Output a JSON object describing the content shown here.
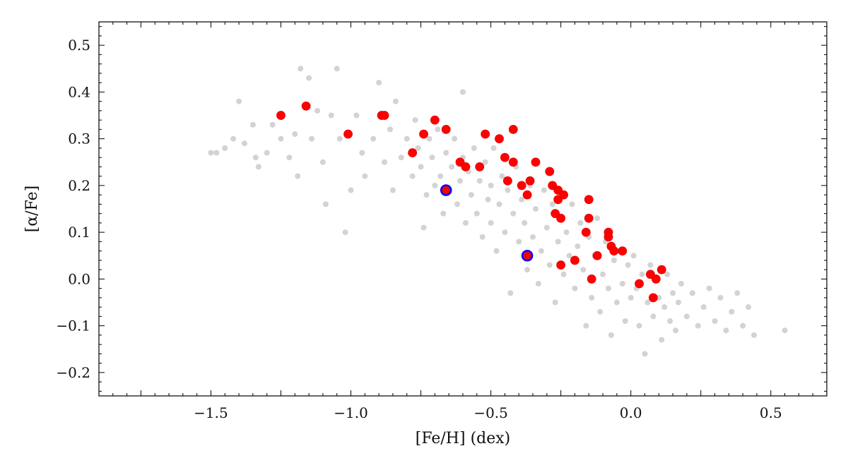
{
  "chart_data": {
    "type": "scatter",
    "title": "",
    "xlabel": "[Fe/H] (dex)",
    "ylabel": "[α/Fe]",
    "xlim": [
      -1.9,
      0.7
    ],
    "ylim": [
      -0.25,
      0.55
    ],
    "xticks": [
      -1.5,
      -1.0,
      -0.5,
      0.0,
      0.5
    ],
    "xtick_labels": [
      "−1.5",
      "−1.0",
      "−0.5",
      "0.0",
      "0.5"
    ],
    "yticks": [
      -0.2,
      -0.1,
      0.0,
      0.1,
      0.2,
      0.3,
      0.4,
      0.5
    ],
    "ytick_labels": [
      "−0.2",
      "−0.1",
      "0.0",
      "0.1",
      "0.2",
      "0.3",
      "0.4",
      "0.5"
    ],
    "grid": false,
    "legend": "none",
    "series": [
      {
        "color": "#d3d3d3",
        "points": [
          [
            -1.5,
            0.27
          ],
          [
            -1.48,
            0.27
          ],
          [
            -1.45,
            0.28
          ],
          [
            -1.42,
            0.3
          ],
          [
            -1.4,
            0.38
          ],
          [
            -1.38,
            0.29
          ],
          [
            -1.35,
            0.33
          ],
          [
            -1.34,
            0.26
          ],
          [
            -1.33,
            0.24
          ],
          [
            -1.3,
            0.27
          ],
          [
            -1.28,
            0.33
          ],
          [
            -1.25,
            0.3
          ],
          [
            -1.22,
            0.26
          ],
          [
            -1.2,
            0.31
          ],
          [
            -1.19,
            0.22
          ],
          [
            -1.18,
            0.45
          ],
          [
            -1.16,
            0.37
          ],
          [
            -1.15,
            0.43
          ],
          [
            -1.14,
            0.3
          ],
          [
            -1.12,
            0.36
          ],
          [
            -1.1,
            0.25
          ],
          [
            -1.09,
            0.16
          ],
          [
            -1.07,
            0.35
          ],
          [
            -1.05,
            0.45
          ],
          [
            -1.04,
            0.3
          ],
          [
            -1.02,
            0.1
          ],
          [
            -1.0,
            0.19
          ],
          [
            -0.98,
            0.35
          ],
          [
            -0.96,
            0.27
          ],
          [
            -0.95,
            0.22
          ],
          [
            -0.92,
            0.3
          ],
          [
            -0.9,
            0.42
          ],
          [
            -0.88,
            0.25
          ],
          [
            -0.86,
            0.32
          ],
          [
            -0.85,
            0.19
          ],
          [
            -0.84,
            0.38
          ],
          [
            -0.82,
            0.26
          ],
          [
            -0.8,
            0.3
          ],
          [
            -0.78,
            0.22
          ],
          [
            -0.77,
            0.34
          ],
          [
            -0.76,
            0.28
          ],
          [
            -0.75,
            0.24
          ],
          [
            -0.74,
            0.11
          ],
          [
            -0.73,
            0.18
          ],
          [
            -0.72,
            0.3
          ],
          [
            -0.71,
            0.26
          ],
          [
            -0.7,
            0.2
          ],
          [
            -0.69,
            0.32
          ],
          [
            -0.68,
            0.22
          ],
          [
            -0.67,
            0.14
          ],
          [
            -0.66,
            0.27
          ],
          [
            -0.65,
            0.19
          ],
          [
            -0.64,
            0.24
          ],
          [
            -0.63,
            0.3
          ],
          [
            -0.62,
            0.16
          ],
          [
            -0.61,
            0.21
          ],
          [
            -0.6,
            0.4
          ],
          [
            -0.6,
            0.26
          ],
          [
            -0.59,
            0.12
          ],
          [
            -0.58,
            0.23
          ],
          [
            -0.57,
            0.18
          ],
          [
            -0.56,
            0.28
          ],
          [
            -0.55,
            0.14
          ],
          [
            -0.54,
            0.21
          ],
          [
            -0.53,
            0.09
          ],
          [
            -0.52,
            0.25
          ],
          [
            -0.51,
            0.17
          ],
          [
            -0.5,
            0.2
          ],
          [
            -0.5,
            0.12
          ],
          [
            -0.49,
            0.28
          ],
          [
            -0.48,
            0.06
          ],
          [
            -0.47,
            0.16
          ],
          [
            -0.46,
            0.22
          ],
          [
            -0.45,
            0.1
          ],
          [
            -0.44,
            0.19
          ],
          [
            -0.43,
            -0.03
          ],
          [
            -0.42,
            0.14
          ],
          [
            -0.41,
            0.24
          ],
          [
            -0.4,
            0.08
          ],
          [
            -0.39,
            0.17
          ],
          [
            -0.38,
            0.12
          ],
          [
            -0.37,
            0.02
          ],
          [
            -0.36,
            0.2
          ],
          [
            -0.35,
            0.09
          ],
          [
            -0.34,
            0.15
          ],
          [
            -0.33,
            -0.01
          ],
          [
            -0.32,
            0.06
          ],
          [
            -0.31,
            0.19
          ],
          [
            -0.3,
            0.11
          ],
          [
            -0.29,
            0.03
          ],
          [
            -0.28,
            0.16
          ],
          [
            -0.27,
            -0.05
          ],
          [
            -0.26,
            0.08
          ],
          [
            -0.25,
            0.13
          ],
          [
            -0.24,
            0.01
          ],
          [
            -0.23,
            0.1
          ],
          [
            -0.22,
            0.05
          ],
          [
            -0.21,
            0.16
          ],
          [
            -0.2,
            -0.02
          ],
          [
            -0.19,
            0.07
          ],
          [
            -0.18,
            0.12
          ],
          [
            -0.17,
            0.02
          ],
          [
            -0.16,
            -0.1
          ],
          [
            -0.15,
            0.09
          ],
          [
            -0.14,
            -0.04
          ],
          [
            -0.13,
            0.05
          ],
          [
            -0.12,
            0.13
          ],
          [
            -0.11,
            -0.07
          ],
          [
            -0.1,
            0.01
          ],
          [
            -0.09,
            0.08
          ],
          [
            -0.08,
            -0.02
          ],
          [
            -0.07,
            -0.12
          ],
          [
            -0.06,
            0.04
          ],
          [
            -0.05,
            -0.05
          ],
          [
            -0.04,
            0.06
          ],
          [
            -0.03,
            -0.01
          ],
          [
            -0.02,
            -0.09
          ],
          [
            -0.01,
            0.03
          ],
          [
            0.0,
            -0.04
          ],
          [
            0.01,
            0.05
          ],
          [
            0.02,
            -0.02
          ],
          [
            0.03,
            -0.1
          ],
          [
            0.04,
            0.01
          ],
          [
            0.05,
            -0.16
          ],
          [
            0.06,
            -0.05
          ],
          [
            0.07,
            0.03
          ],
          [
            0.08,
            -0.08
          ],
          [
            0.09,
            0.0
          ],
          [
            0.1,
            -0.04
          ],
          [
            0.11,
            -0.13
          ],
          [
            0.12,
            -0.06
          ],
          [
            0.13,
            0.01
          ],
          [
            0.14,
            -0.09
          ],
          [
            0.15,
            -0.03
          ],
          [
            0.16,
            -0.11
          ],
          [
            0.17,
            -0.05
          ],
          [
            0.18,
            -0.01
          ],
          [
            0.2,
            -0.08
          ],
          [
            0.22,
            -0.03
          ],
          [
            0.24,
            -0.1
          ],
          [
            0.26,
            -0.06
          ],
          [
            0.28,
            -0.02
          ],
          [
            0.3,
            -0.09
          ],
          [
            0.32,
            -0.04
          ],
          [
            0.34,
            -0.11
          ],
          [
            0.36,
            -0.07
          ],
          [
            0.38,
            -0.03
          ],
          [
            0.4,
            -0.1
          ],
          [
            0.42,
            -0.06
          ],
          [
            0.44,
            -0.12
          ],
          [
            0.55,
            -0.11
          ]
        ]
      },
      {
        "color": "#ff0000",
        "points": [
          [
            -1.25,
            0.35
          ],
          [
            -1.16,
            0.37
          ],
          [
            -1.01,
            0.31
          ],
          [
            -0.89,
            0.35
          ],
          [
            -0.88,
            0.35
          ],
          [
            -0.78,
            0.27
          ],
          [
            -0.74,
            0.31
          ],
          [
            -0.7,
            0.34
          ],
          [
            -0.66,
            0.32
          ],
          [
            -0.61,
            0.25
          ],
          [
            -0.59,
            0.24
          ],
          [
            -0.54,
            0.24
          ],
          [
            -0.52,
            0.31
          ],
          [
            -0.47,
            0.3
          ],
          [
            -0.45,
            0.26
          ],
          [
            -0.44,
            0.21
          ],
          [
            -0.42,
            0.32
          ],
          [
            -0.42,
            0.25
          ],
          [
            -0.39,
            0.2
          ],
          [
            -0.37,
            0.18
          ],
          [
            -0.36,
            0.21
          ],
          [
            -0.34,
            0.25
          ],
          [
            -0.29,
            0.23
          ],
          [
            -0.28,
            0.2
          ],
          [
            -0.27,
            0.14
          ],
          [
            -0.26,
            0.19
          ],
          [
            -0.26,
            0.17
          ],
          [
            -0.25,
            0.13
          ],
          [
            -0.25,
            0.03
          ],
          [
            -0.24,
            0.18
          ],
          [
            -0.2,
            0.04
          ],
          [
            -0.16,
            0.1
          ],
          [
            -0.15,
            0.17
          ],
          [
            -0.15,
            0.13
          ],
          [
            -0.14,
            0.0
          ],
          [
            -0.12,
            0.05
          ],
          [
            -0.08,
            0.1
          ],
          [
            -0.08,
            0.09
          ],
          [
            -0.07,
            0.07
          ],
          [
            -0.06,
            0.06
          ],
          [
            -0.03,
            0.06
          ],
          [
            0.03,
            -0.01
          ],
          [
            0.07,
            0.01
          ],
          [
            0.08,
            -0.04
          ],
          [
            0.09,
            0.0
          ],
          [
            0.11,
            0.02
          ]
        ]
      },
      {
        "color": "#ff0000",
        "outline": "#0000ff",
        "points": [
          [
            -0.66,
            0.19
          ],
          [
            -0.37,
            0.05
          ]
        ]
      }
    ]
  }
}
